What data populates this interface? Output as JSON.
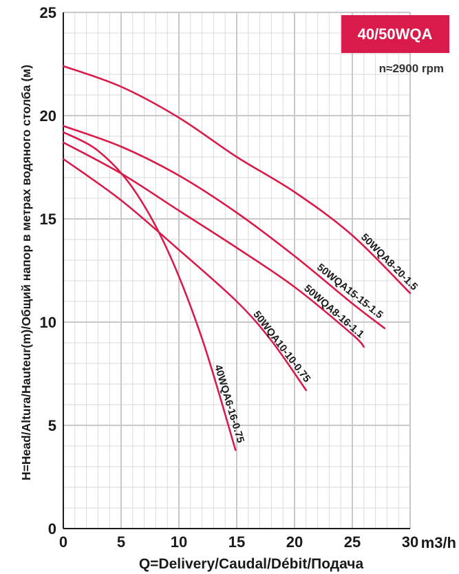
{
  "chart_data": {
    "type": "line",
    "title": "40/50WQA",
    "subtitle": "n≈2900 rpm",
    "xlabel": "Q=Delivery/Caudal/Débit/Подача",
    "xunit": "m3/h",
    "ylabel": "H=Head/Altura/Hauteur(m)/Общий напор в метрах водяного столба (м)",
    "xlim": [
      0,
      30
    ],
    "ylim": [
      0,
      25
    ],
    "x_ticks": [
      0,
      5,
      10,
      15,
      20,
      25,
      30
    ],
    "y_ticks": [
      0,
      5,
      10,
      15,
      20,
      25
    ],
    "grid": true,
    "series": [
      {
        "name": "50WQA8-20-1.5",
        "x": [
          0,
          5,
          10,
          15,
          20,
          25,
          30
        ],
        "y": [
          22.4,
          21.4,
          19.9,
          18.0,
          16.3,
          14.2,
          11.4
        ]
      },
      {
        "name": "50WQA15-15-1.5",
        "x": [
          0,
          5,
          10,
          15,
          20,
          25,
          27.8
        ],
        "y": [
          19.5,
          18.5,
          17.1,
          15.3,
          13.2,
          10.9,
          9.7
        ]
      },
      {
        "name": "50WQA8-16-1.1",
        "x": [
          0,
          5,
          10,
          15,
          20,
          25,
          26
        ],
        "y": [
          18.7,
          17.2,
          15.4,
          13.6,
          11.7,
          9.4,
          8.8
        ]
      },
      {
        "name": "50WQA10-10-0.75",
        "x": [
          0,
          5,
          10,
          15,
          18,
          21
        ],
        "y": [
          17.9,
          15.9,
          13.5,
          11.0,
          9.1,
          6.7
        ]
      },
      {
        "name": "40WQA6-16-0.75",
        "x": [
          0,
          3,
          6,
          9,
          12,
          14.9
        ],
        "y": [
          19.2,
          18.3,
          16.5,
          13.5,
          9.2,
          3.8
        ]
      }
    ]
  },
  "colors": {
    "curve": "#d81b4a",
    "badge": "#d81b4a",
    "grid_major": "#c8c8c8",
    "grid_minor": "#dadada",
    "axis": "#1a1a1a"
  }
}
